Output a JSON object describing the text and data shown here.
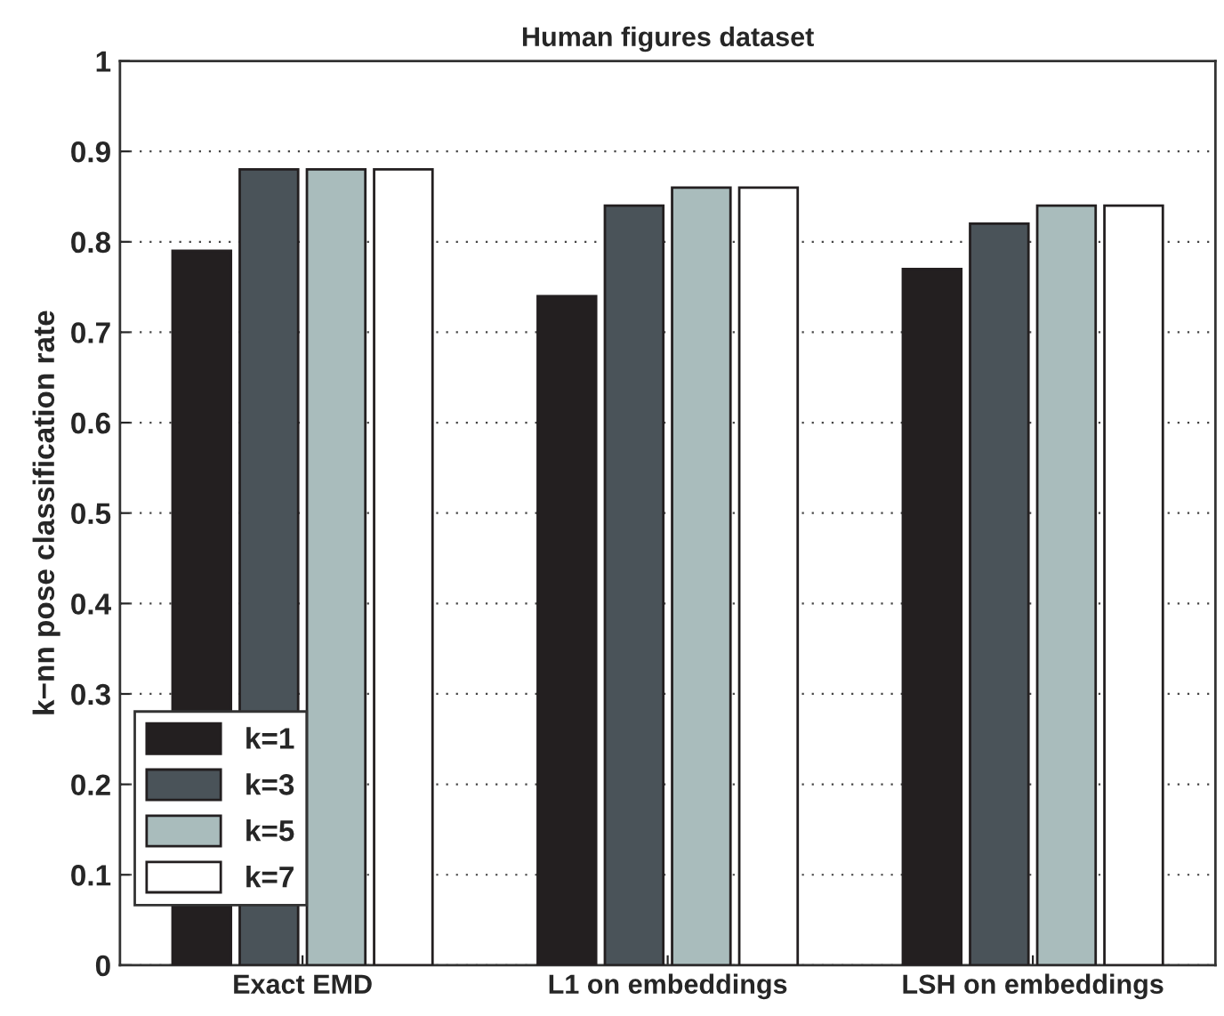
{
  "chart_data": {
    "type": "bar",
    "title": "Human figures dataset",
    "ylabel": "k−nn pose classification rate",
    "categories": [
      "Exact EMD",
      "L1 on embeddings",
      "LSH on embeddings"
    ],
    "series": [
      {
        "name": "k=1",
        "color": "#231f20",
        "values": [
          0.79,
          0.74,
          0.77
        ]
      },
      {
        "name": "k=3",
        "color": "#4a5359",
        "values": [
          0.88,
          0.84,
          0.82
        ]
      },
      {
        "name": "k=5",
        "color": "#a9bcbc",
        "values": [
          0.88,
          0.86,
          0.84
        ]
      },
      {
        "name": "k=7",
        "color": "#ffffff",
        "values": [
          0.88,
          0.86,
          0.84
        ]
      }
    ],
    "ylim": [
      0,
      1
    ],
    "yticks": [
      0,
      0.1,
      0.2,
      0.3,
      0.4,
      0.5,
      0.6,
      0.7,
      0.8,
      0.9,
      1
    ],
    "grid": "y",
    "legend": "bottom left"
  }
}
